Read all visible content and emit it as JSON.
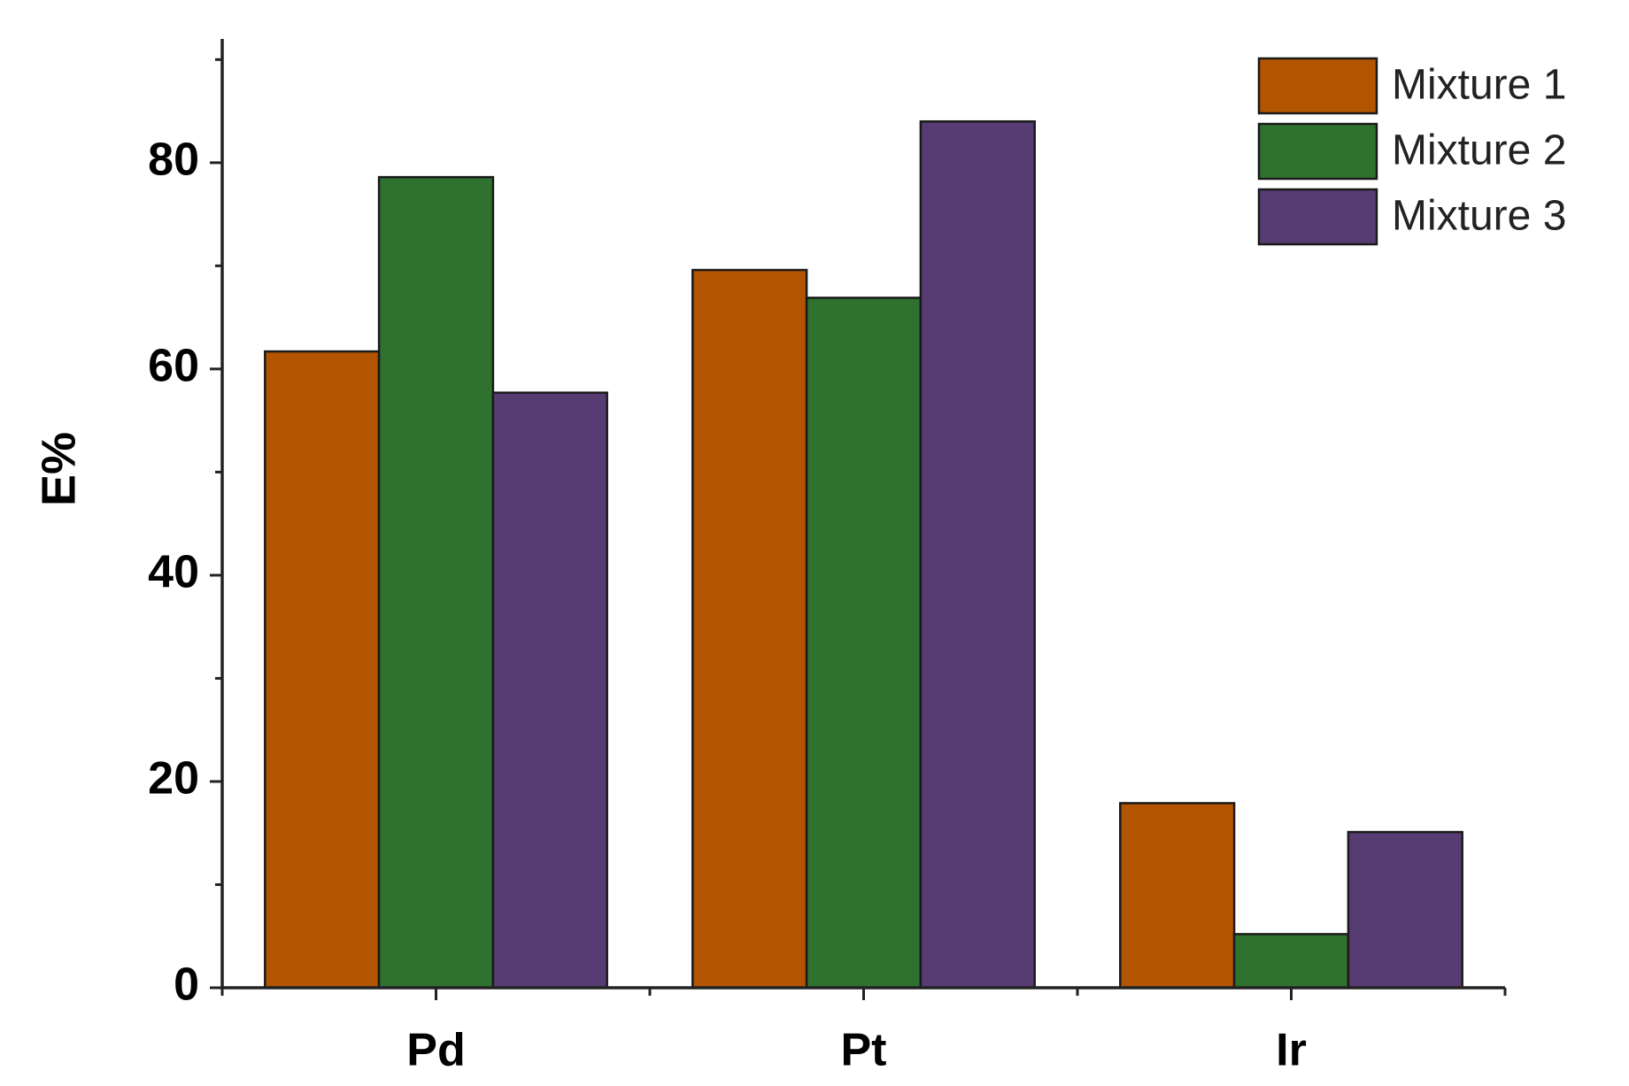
{
  "chart_data": {
    "type": "bar",
    "y_label": "E%",
    "categories": [
      "Pd",
      "Pt",
      "Ir"
    ],
    "series": [
      {
        "name": "Mixture 1",
        "color": "#b25400",
        "values": [
          61.7,
          69.6,
          17.9
        ]
      },
      {
        "name": "Mixture 2",
        "color": "#2f7230",
        "values": [
          78.6,
          66.9,
          5.2
        ]
      },
      {
        "name": "Mixture 3",
        "color": "#573c74",
        "values": [
          57.7,
          84.0,
          15.1
        ]
      }
    ],
    "ylim": [
      0,
      92
    ],
    "yticks": [
      0,
      20,
      40,
      60,
      80
    ],
    "yticks_minor": [
      10,
      30,
      50,
      70,
      90
    ],
    "grid": false,
    "legend": "top-right"
  }
}
